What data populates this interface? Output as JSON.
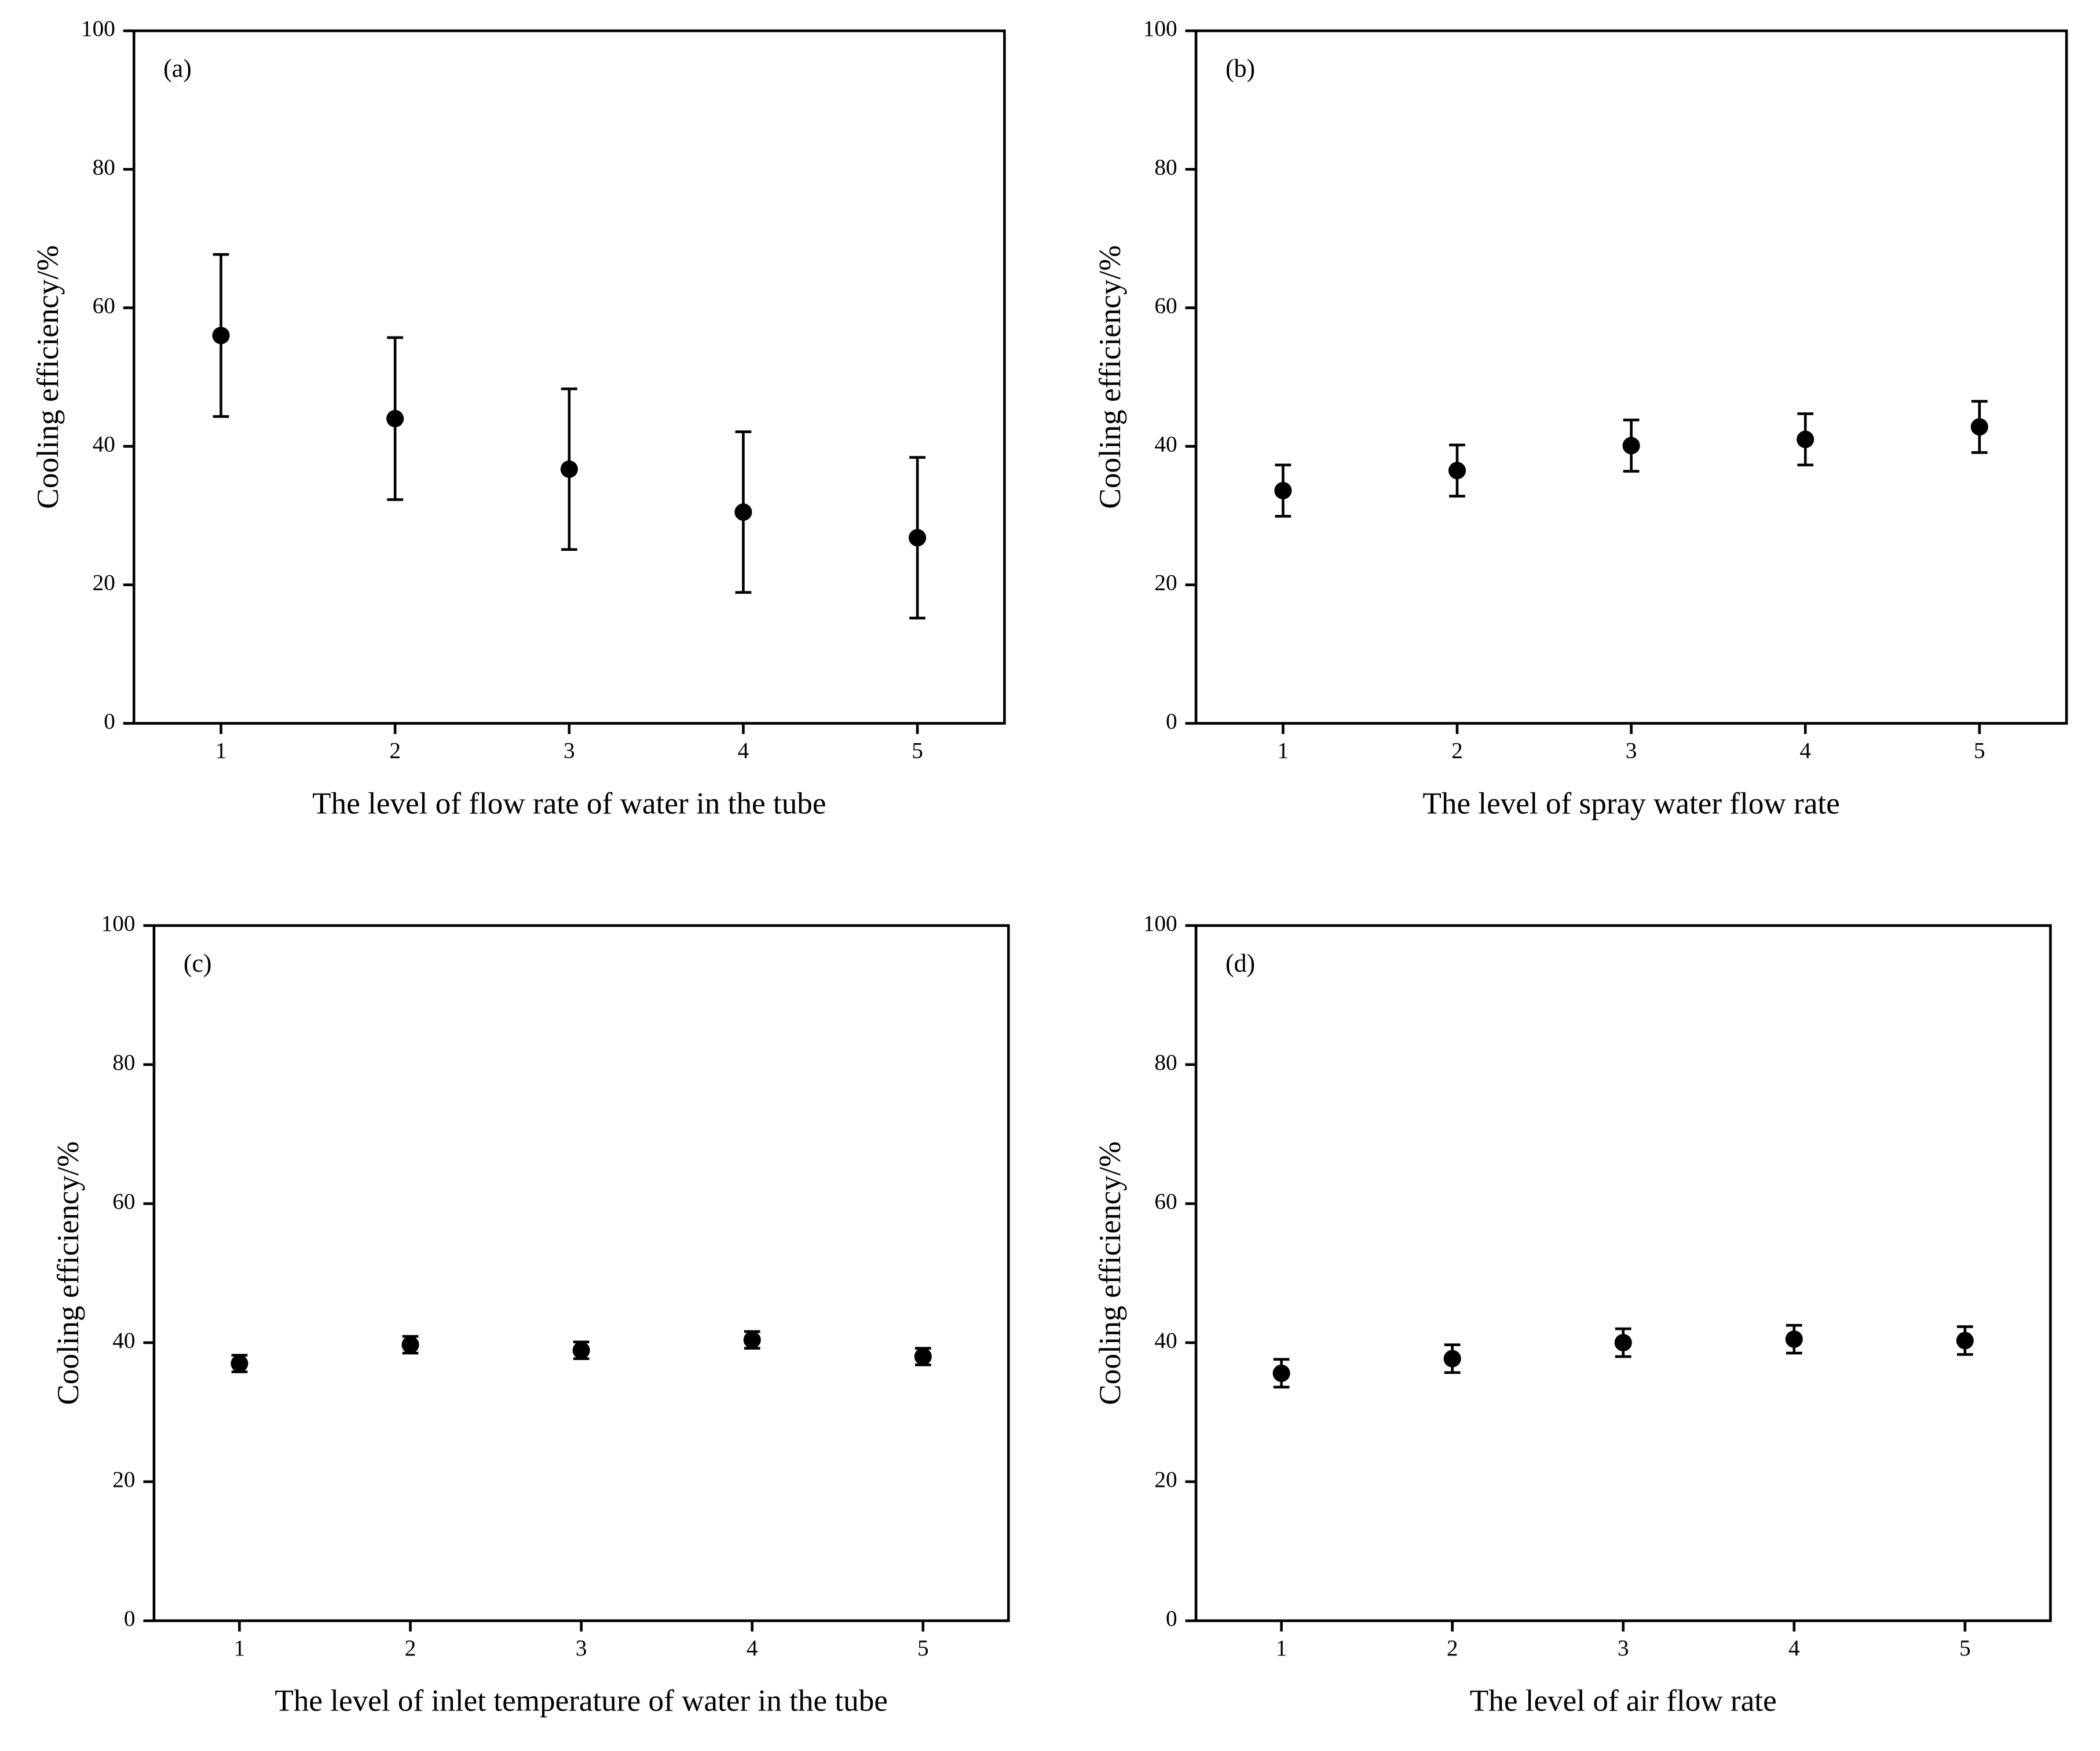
{
  "chart_data": [
    {
      "type": "scatter",
      "label": "(a)",
      "xlabel": "The level of flow rate of water in the tube",
      "ylabel": "Cooling efficiency/%",
      "x": [
        1,
        2,
        3,
        4,
        5
      ],
      "xlim": [
        0.5,
        5.5
      ],
      "xticks": [
        1,
        2,
        3,
        4,
        5
      ],
      "ylim": [
        0,
        100
      ],
      "yticks": [
        0,
        20,
        40,
        60,
        80,
        100
      ],
      "series": [
        {
          "color": "#000000",
          "values": [
            56,
            44,
            36.7,
            30.5,
            26.8
          ],
          "errors": [
            11.7,
            11.7,
            11.6,
            11.6,
            11.6
          ]
        }
      ]
    },
    {
      "type": "scatter",
      "label": "(b)",
      "xlabel": "The level of spray water flow rate",
      "ylabel": "Cooling efficiency/%",
      "x": [
        1,
        2,
        3,
        4,
        5
      ],
      "xlim": [
        0.5,
        5.5
      ],
      "xticks": [
        1,
        2,
        3,
        4,
        5
      ],
      "ylim": [
        0,
        100
      ],
      "yticks": [
        0,
        20,
        40,
        60,
        80,
        100
      ],
      "series": [
        {
          "color": "#000000",
          "values": [
            33.6,
            36.5,
            40.1,
            41,
            42.8
          ],
          "errors": [
            3.7,
            3.7,
            3.7,
            3.7,
            3.7
          ]
        }
      ]
    },
    {
      "type": "scatter",
      "label": "(c)",
      "xlabel": "The level of inlet temperature of water in the tube",
      "ylabel": "Cooling efficiency/%",
      "x": [
        1,
        2,
        3,
        4,
        5
      ],
      "xlim": [
        0.5,
        5.5
      ],
      "xticks": [
        1,
        2,
        3,
        4,
        5
      ],
      "ylim": [
        0,
        100
      ],
      "yticks": [
        0,
        20,
        40,
        60,
        80,
        100
      ],
      "series": [
        {
          "color": "#000000",
          "values": [
            37,
            39.7,
            38.9,
            40.4,
            38
          ],
          "errors": [
            1.2,
            1.2,
            1.2,
            1.2,
            1.2
          ]
        }
      ]
    },
    {
      "type": "scatter",
      "label": "(d)",
      "xlabel": "The level of air flow rate",
      "ylabel": "Cooling efficiency/%",
      "x": [
        1,
        2,
        3,
        4,
        5
      ],
      "xlim": [
        0.5,
        5.5
      ],
      "xticks": [
        1,
        2,
        3,
        4,
        5
      ],
      "ylim": [
        0,
        100
      ],
      "yticks": [
        0,
        20,
        40,
        60,
        80,
        100
      ],
      "series": [
        {
          "color": "#000000",
          "values": [
            35.6,
            37.7,
            40,
            40.5,
            40.3
          ],
          "errors": [
            2,
            2,
            2,
            2,
            2
          ]
        }
      ]
    }
  ]
}
